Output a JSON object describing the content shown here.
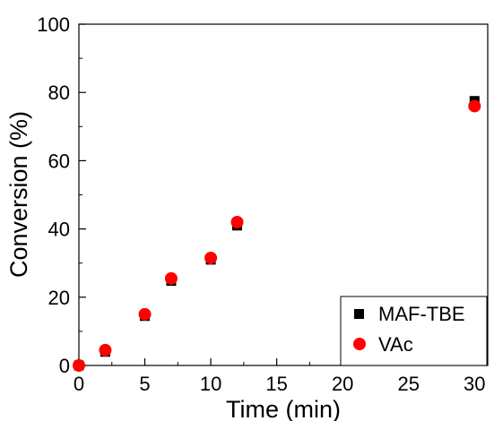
{
  "chart_data": {
    "type": "scatter",
    "xlabel": "Time (min)",
    "ylabel": "Conversion (%)",
    "xlim": [
      0,
      31
    ],
    "ylim": [
      0,
      100
    ],
    "x_ticks": [
      "0",
      "5",
      "10",
      "15",
      "20",
      "25",
      "30"
    ],
    "y_ticks": [
      "0",
      "20",
      "40",
      "60",
      "80",
      "100"
    ],
    "grid": false,
    "legend_position": "bottom-right",
    "series": [
      {
        "name": "MAF-TBE",
        "marker": "square",
        "color": "#000000",
        "x": [
          0,
          2,
          5,
          7,
          10,
          12,
          30
        ],
        "y": [
          0,
          4,
          14.5,
          24.8,
          31,
          41,
          77.5
        ]
      },
      {
        "name": "VAc",
        "marker": "circle",
        "color": "#ff0000",
        "x": [
          0,
          2,
          5,
          7,
          10,
          12,
          30
        ],
        "y": [
          0,
          4.5,
          15,
          25.5,
          31.5,
          42,
          76
        ]
      }
    ]
  }
}
